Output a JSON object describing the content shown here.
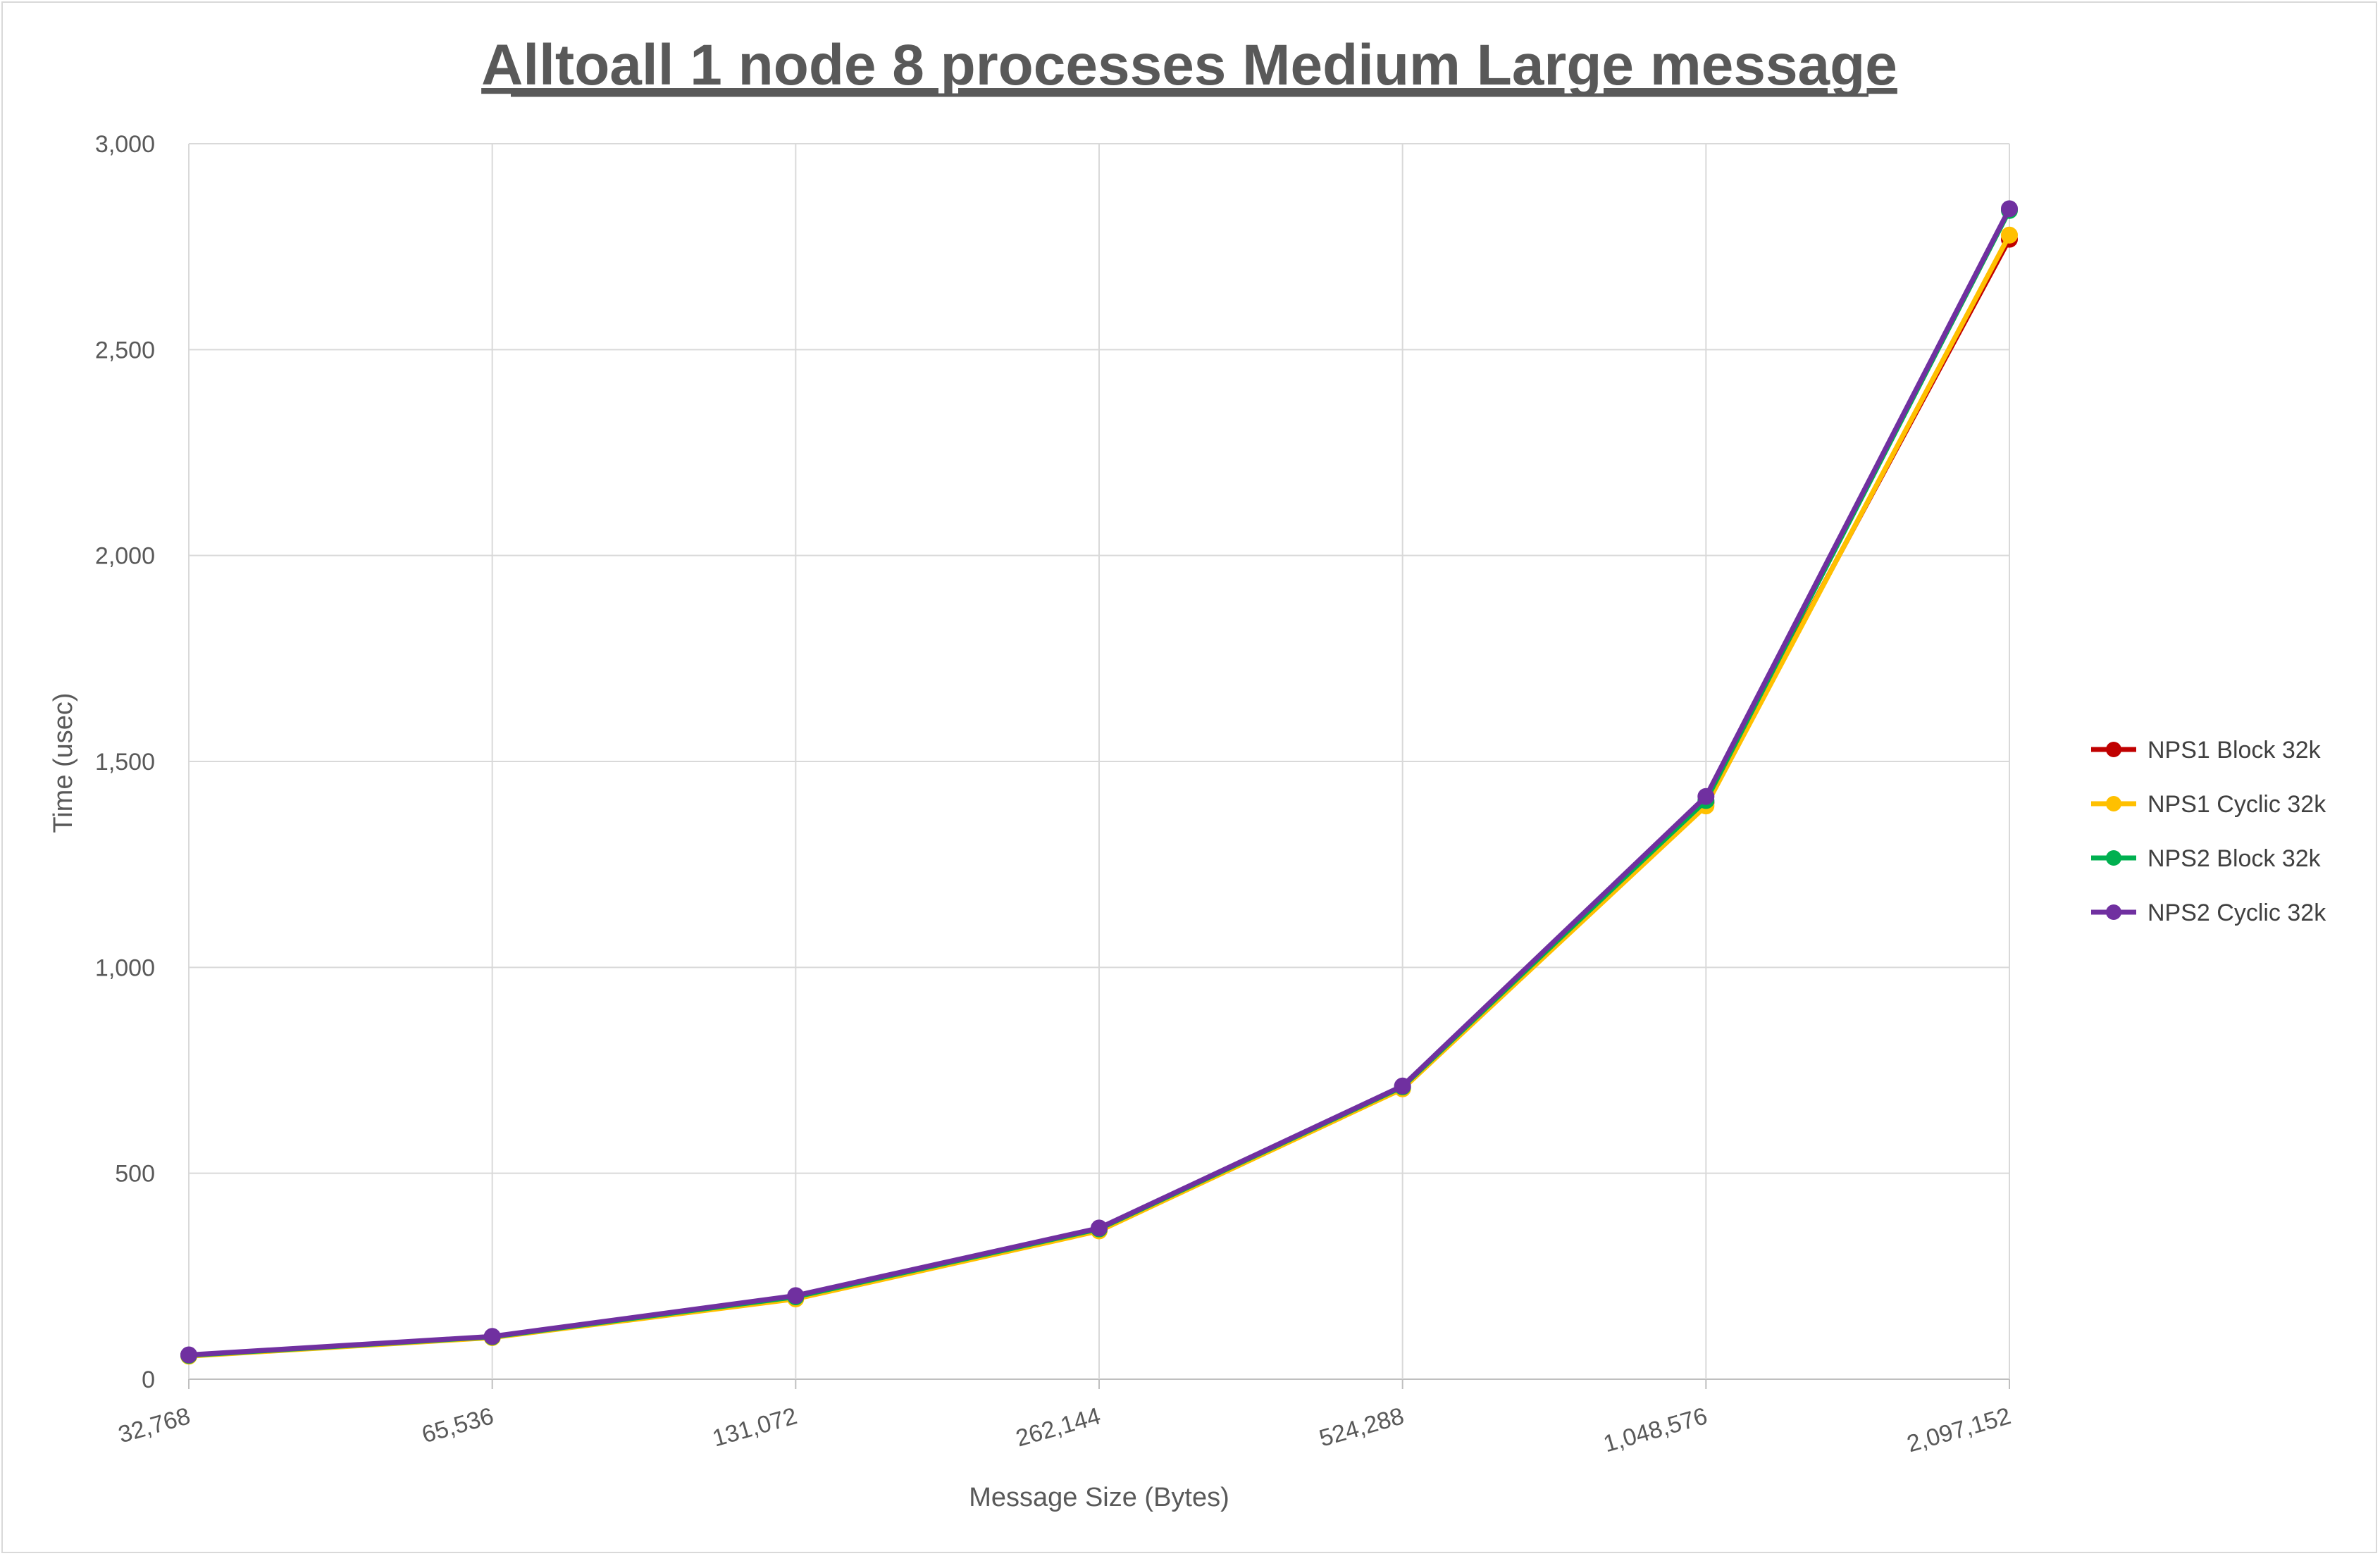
{
  "chart_data": {
    "type": "line",
    "title": "Alltoall 1 node 8 processes Medium Large message",
    "xlabel": "Message Size (Bytes)",
    "ylabel": "Time (usec)",
    "categories": [
      "32,768",
      "65,536",
      "131,072",
      "262,144",
      "524,288",
      "1,048,576",
      "2,097,152"
    ],
    "ylim": [
      0,
      3000
    ],
    "yticks": [
      "0",
      "500",
      "1,000",
      "1,500",
      "2,000",
      "2,500",
      "3,000"
    ],
    "grid": true,
    "legend_position": "right",
    "series": [
      {
        "name": "NPS1 Block 32k",
        "color": "#c00000",
        "values": [
          58,
          102,
          198,
          362,
          708,
          1400,
          2768
        ]
      },
      {
        "name": "NPS1 Cyclic 32k",
        "color": "#ffc000",
        "values": [
          56,
          101,
          195,
          360,
          705,
          1392,
          2778
        ]
      },
      {
        "name": "NPS2 Block 32k",
        "color": "#00b050",
        "values": [
          58,
          103,
          200,
          365,
          710,
          1405,
          2838
        ]
      },
      {
        "name": "NPS2 Cyclic 32k",
        "color": "#7030a0",
        "values": [
          59,
          104,
          203,
          367,
          712,
          1415,
          2842
        ]
      }
    ]
  }
}
